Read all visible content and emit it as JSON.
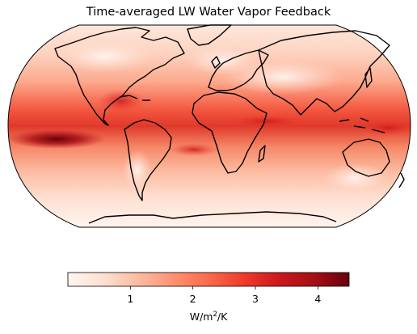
{
  "title": "Time-averaged LW Water Vapor Feedback",
  "map": {
    "projection": "Robinson",
    "variable": "LW water vapor feedback",
    "colormap": "Reds",
    "coastlines": true
  },
  "colorbar": {
    "min": 0.0,
    "max": 4.5,
    "ticks": [
      1,
      2,
      3,
      4
    ],
    "tick_labels": [
      "1",
      "2",
      "3",
      "4"
    ],
    "label_prefix": "W/m",
    "label_exponent": "2",
    "label_suffix": "/K",
    "colors": [
      "#fff5f0",
      "#fee0d2",
      "#fcbba1",
      "#fc9272",
      "#fb6a4a",
      "#ef3b2c",
      "#cb181d",
      "#a50f15",
      "#67000d"
    ]
  }
}
